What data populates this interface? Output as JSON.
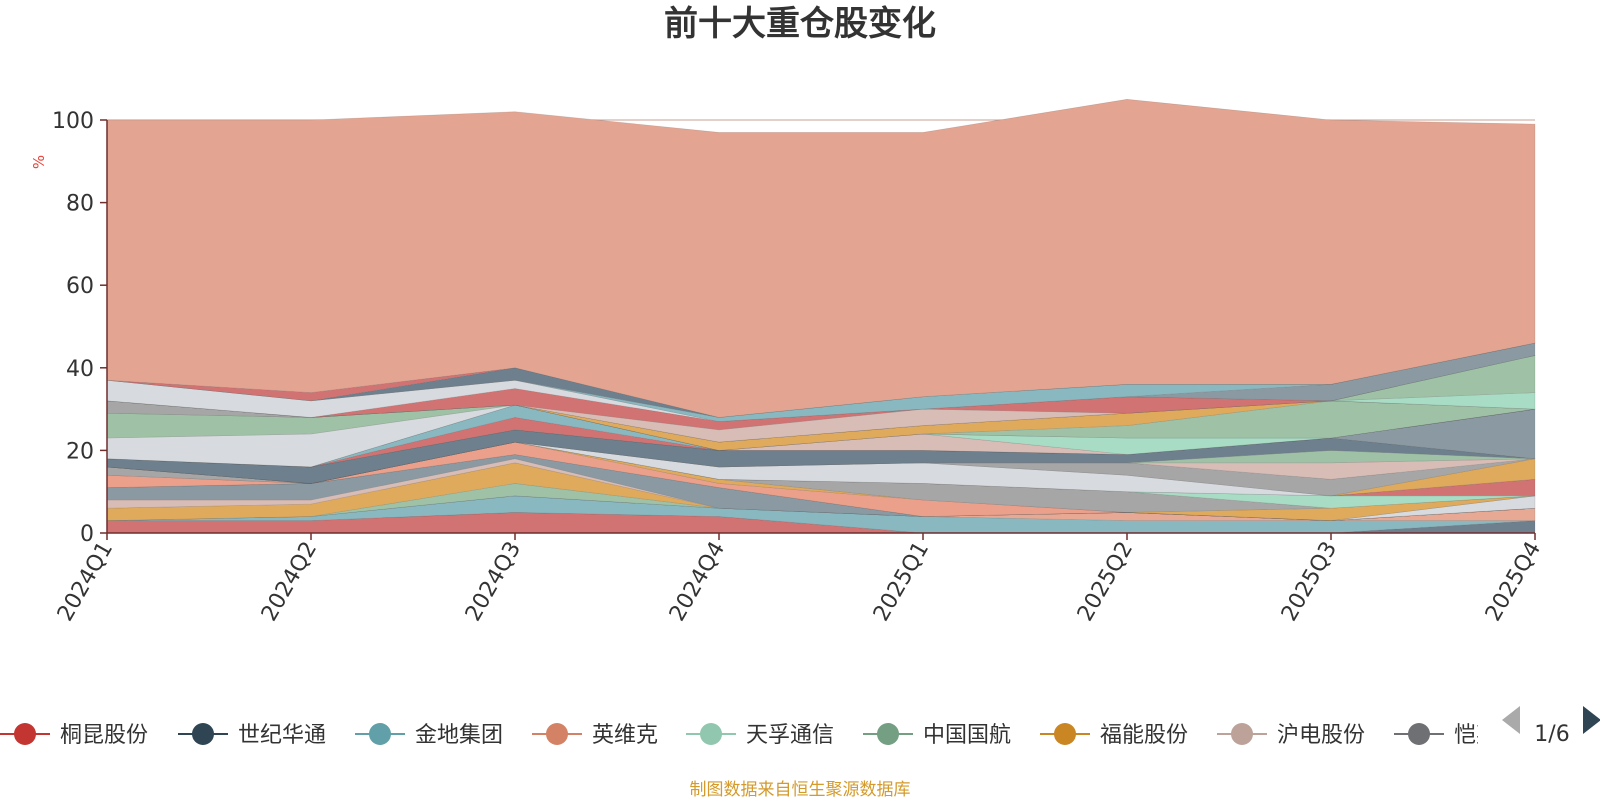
{
  "chart_data": {
    "type": "area",
    "stacked": true,
    "title": "前十大重仓股变化",
    "ylabel": "%",
    "ylim": [
      0,
      100
    ],
    "yticks": [
      "0",
      "20",
      "40",
      "60",
      "80",
      "100"
    ],
    "categories": [
      "2024Q1",
      "2024Q2",
      "2024Q3",
      "2024Q4",
      "2025Q1",
      "2025Q2",
      "2025Q3",
      "2025Q4"
    ],
    "grid": true,
    "legend_position": "bottom",
    "series": [
      {
        "name": "桐昆股份",
        "color": "#d27373",
        "values": [
          3,
          3,
          5,
          4,
          0,
          0,
          0,
          0
        ]
      },
      {
        "name": "世纪华通",
        "color": "#6e7f8d",
        "values": [
          0,
          0,
          0,
          0,
          0,
          0,
          0,
          3
        ]
      },
      {
        "name": "金地集团",
        "color": "#89b8c0",
        "values": [
          0,
          1,
          4,
          2,
          4,
          3,
          3,
          0
        ]
      },
      {
        "name": "英维克",
        "color": "#e7a994",
        "values": [
          0,
          0,
          0,
          0,
          0,
          2,
          0,
          3
        ]
      },
      {
        "name": "天孚通信",
        "color": "#a8dcc4",
        "values": [
          0,
          0,
          0,
          0,
          0,
          0,
          0,
          0
        ]
      },
      {
        "name": "中国国航",
        "color": "#9fc2a6",
        "values": [
          0,
          0,
          3,
          0,
          0,
          0,
          0,
          0
        ]
      },
      {
        "name": "福能股份",
        "color": "#e0aa5c",
        "values": [
          3,
          3,
          5,
          0,
          0,
          0,
          0,
          0
        ]
      },
      {
        "name": "沪电股份",
        "color": "#d8bcb6",
        "values": [
          2,
          1,
          1,
          0,
          0,
          0,
          0,
          0
        ]
      },
      {
        "name": "恺英网络",
        "color": "#8b9aa2",
        "values": [
          3,
          4,
          1,
          5,
          0,
          0,
          0,
          0
        ]
      },
      {
        "name": "",
        "color": "#a5c7cd",
        "values": [
          0,
          0,
          0,
          0,
          0,
          0,
          0,
          0
        ]
      },
      {
        "name": "",
        "color": "#d7dbdf",
        "values": [
          0,
          0,
          0,
          0,
          0,
          0,
          0,
          3
        ]
      },
      {
        "name": "",
        "color": "#eba08c",
        "values": [
          3,
          0,
          3,
          1,
          4,
          0,
          0,
          0
        ]
      },
      {
        "name": "",
        "color": "#e0aa5c",
        "values": [
          0,
          0,
          0,
          1,
          0,
          0,
          3,
          0
        ]
      },
      {
        "name": "",
        "color": "#a6a6a6",
        "values": [
          2,
          0,
          0,
          0,
          4,
          5,
          0,
          0
        ]
      },
      {
        "name": "",
        "color": "#a8dcc4",
        "values": [
          0,
          0,
          0,
          0,
          0,
          0,
          3,
          0
        ]
      },
      {
        "name": "",
        "color": "#d27373",
        "values": [
          0,
          0,
          0,
          0,
          0,
          0,
          0,
          4
        ]
      },
      {
        "name": "",
        "color": "#d7dbdf",
        "values": [
          0,
          0,
          0,
          3,
          5,
          4,
          0,
          0
        ]
      },
      {
        "name": "",
        "color": "#e0aa5c",
        "values": [
          0,
          0,
          0,
          0,
          0,
          0,
          0,
          5
        ]
      },
      {
        "name": "",
        "color": "#a6a6a6",
        "values": [
          0,
          0,
          0,
          0,
          0,
          3,
          4,
          0
        ]
      },
      {
        "name": "",
        "color": "#d8bcb6",
        "values": [
          0,
          0,
          0,
          0,
          0,
          0,
          4,
          0
        ]
      },
      {
        "name": "",
        "color": "#9fc2a6",
        "values": [
          0,
          0,
          0,
          0,
          0,
          0,
          3,
          0
        ]
      },
      {
        "name": "",
        "color": "#6e7f8d",
        "values": [
          2,
          4,
          3,
          4,
          3,
          2,
          3,
          0
        ]
      },
      {
        "name": "",
        "color": "#d7dbdf",
        "values": [
          0,
          0,
          0,
          0,
          0,
          0,
          0,
          0
        ]
      },
      {
        "name": "",
        "color": "#8b9aa2",
        "values": [
          0,
          0,
          0,
          0,
          0,
          0,
          0,
          12
        ]
      },
      {
        "name": "",
        "color": "#d27373",
        "values": [
          0,
          0,
          3,
          0,
          0,
          0,
          0,
          0
        ]
      },
      {
        "name": "",
        "color": "#89b8c0",
        "values": [
          0,
          0,
          3,
          0,
          0,
          0,
          0,
          0
        ]
      },
      {
        "name": "",
        "color": "#d8bcb6",
        "values": [
          0,
          0,
          0,
          0,
          4,
          0,
          0,
          0
        ]
      },
      {
        "name": "",
        "color": "#a8dcc4",
        "values": [
          0,
          0,
          0,
          0,
          0,
          4,
          0,
          0
        ]
      },
      {
        "name": "",
        "color": "#d7dbdf",
        "values": [
          5,
          8,
          0,
          0,
          0,
          0,
          0,
          0
        ]
      },
      {
        "name": "",
        "color": "#9fc2a6",
        "values": [
          6,
          4,
          0,
          0,
          0,
          3,
          9,
          0
        ]
      },
      {
        "name": "",
        "color": "#e0aa5c",
        "values": [
          0,
          0,
          0,
          2,
          2,
          3,
          0,
          0
        ]
      },
      {
        "name": "",
        "color": "#a6a6a6",
        "values": [
          3,
          0,
          0,
          0,
          0,
          0,
          0,
          0
        ]
      },
      {
        "name": "",
        "color": "#a8dcc4",
        "values": [
          0,
          0,
          0,
          0,
          0,
          0,
          0,
          4
        ]
      },
      {
        "name": "",
        "color": "#9fc2a6",
        "values": [
          0,
          0,
          0,
          0,
          0,
          0,
          0,
          9
        ]
      },
      {
        "name": "",
        "color": "#d8bcb6",
        "values": [
          0,
          0,
          0,
          3,
          4,
          0,
          0,
          0
        ]
      },
      {
        "name": "",
        "color": "#d27373",
        "values": [
          0,
          0,
          4,
          2,
          0,
          4,
          0,
          0
        ]
      },
      {
        "name": "",
        "color": "#d7dbdf",
        "values": [
          5,
          4,
          2,
          0,
          0,
          0,
          0,
          0
        ]
      },
      {
        "name": "",
        "color": "#8b9aa2",
        "values": [
          0,
          0,
          0,
          0,
          0,
          0,
          4,
          3
        ]
      },
      {
        "name": "",
        "color": "#89b8c0",
        "values": [
          0,
          0,
          0,
          1,
          3,
          3,
          0,
          0
        ]
      },
      {
        "name": "",
        "color": "#6e7f8d",
        "values": [
          0,
          0,
          3,
          0,
          0,
          0,
          0,
          0
        ]
      },
      {
        "name": "",
        "color": "#d27373",
        "values": [
          0,
          2,
          0,
          0,
          0,
          0,
          0,
          0
        ]
      },
      {
        "name": "",
        "color": "#e3a591",
        "values": [
          63,
          66,
          62,
          69,
          64,
          69,
          64,
          53
        ]
      }
    ]
  },
  "legend": {
    "items": [
      {
        "label": "桐昆股份",
        "color": "#c23531"
      },
      {
        "label": "世纪华通",
        "color": "#2f4554"
      },
      {
        "label": "金地集团",
        "color": "#61a0a8"
      },
      {
        "label": "英维克",
        "color": "#d48265"
      },
      {
        "label": "天孚通信",
        "color": "#91c7ae"
      },
      {
        "label": "中国国航",
        "color": "#749f83"
      },
      {
        "label": "福能股份",
        "color": "#ca8622"
      },
      {
        "label": "沪电股份",
        "color": "#bda29a"
      },
      {
        "label": "恺英网络",
        "color": "#6e7074"
      }
    ],
    "page": "1/6",
    "prev_color": "#aaaaaa",
    "next_color": "#2f4554"
  },
  "source": "制图数据来自恒生聚源数据库"
}
